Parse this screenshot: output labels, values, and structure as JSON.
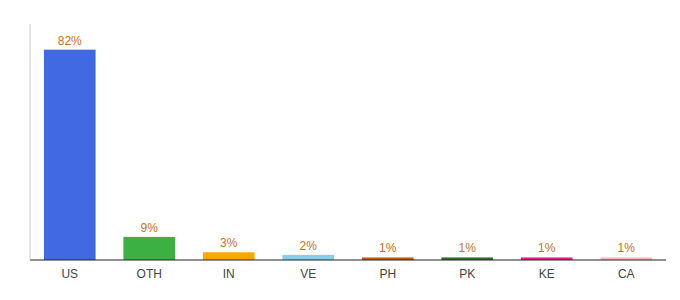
{
  "chart_data": {
    "type": "bar",
    "categories": [
      "US",
      "OTH",
      "IN",
      "VE",
      "PH",
      "PK",
      "KE",
      "CA"
    ],
    "values": [
      82,
      9,
      3,
      2,
      1,
      1,
      1,
      1
    ],
    "value_labels": [
      "82%",
      "9%",
      "3%",
      "2%",
      "1%",
      "1%",
      "1%",
      "1%"
    ],
    "colors": [
      "#4169e1",
      "#3cb043",
      "#ffa500",
      "#87ceeb",
      "#c85a00",
      "#2d6e2d",
      "#e91e8c",
      "#ffb6c1"
    ],
    "ylim": [
      0,
      92
    ],
    "tick_labels": "x",
    "data_labels": true
  }
}
